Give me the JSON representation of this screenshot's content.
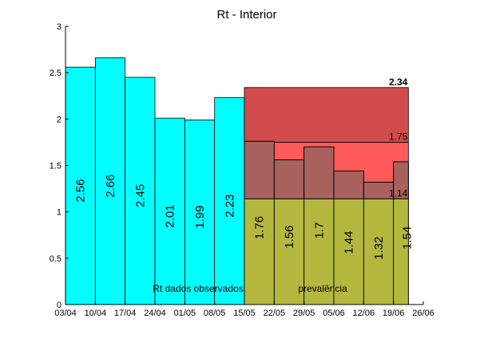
{
  "chart_data": {
    "type": "bar",
    "title": "Rt - Interior",
    "xlabel": "",
    "ylabel": "",
    "ylim": [
      0,
      3
    ],
    "yticks": [
      "0",
      "0.5",
      "1",
      "1.5",
      "2",
      "2.5",
      "3"
    ],
    "xticks": [
      "03/04",
      "10/04",
      "17/04",
      "24/04",
      "01/05",
      "08/05",
      "15/05",
      "22/05",
      "29/05",
      "05/06",
      "12/06",
      "19/06",
      "26/06"
    ],
    "series": [
      {
        "name": "Rt dados observados",
        "color": "#00ffff",
        "start_tick": 0,
        "values": [
          2.56,
          2.66,
          2.45,
          2.01,
          1.99,
          2.23,
          1.76,
          1.56,
          1.7,
          1.44,
          1.32,
          1.54
        ],
        "labels": [
          "2.56",
          "2.66",
          "2.45",
          "2.01",
          "1.99",
          "2.23",
          "1.76",
          "1.56",
          "1.7",
          "1.44",
          "1.32",
          "1.54"
        ]
      }
    ],
    "prevalence_bands": {
      "name": "prevalência",
      "start_tick": 6,
      "end_tick": 11.5,
      "bands": [
        {
          "from": 0,
          "to": 1.14,
          "color": "#b5b83f"
        },
        {
          "from": 1.14,
          "to": 1.75,
          "color": "#ff5a5a"
        },
        {
          "from": 1.75,
          "to": 2.34,
          "color": "#d24b4b"
        }
      ],
      "thresholds": [
        "1.14",
        "1.75",
        "2.34"
      ],
      "overlap_bar_color": "#a8615c"
    },
    "annotations": [
      "Rt dados observados",
      "prevalência"
    ],
    "grid": false
  }
}
